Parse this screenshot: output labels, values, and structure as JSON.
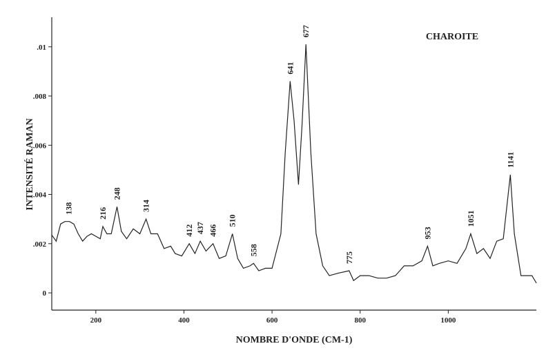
{
  "chart_data": {
    "type": "line",
    "title": "CHAROITE",
    "x_label": "NOMBRE D'ONDE (CM-1)",
    "y_label": "INTENSITÉ RAMAN",
    "color": "#222222",
    "xlim": [
      100,
      1200
    ],
    "xticks": [
      200,
      400,
      600,
      800,
      1000
    ],
    "ylim": [
      -0.0007,
      0.0112
    ],
    "yticks": [
      0,
      {
        "value": 0.002,
        "label": ".002"
      },
      {
        "value": 0.004,
        "label": ".004"
      },
      {
        "value": 0.006,
        "label": ".006"
      },
      {
        "value": 0.008,
        "label": ".008"
      },
      {
        "value": 0.01,
        "label": ".01"
      }
    ],
    "x": [
      100,
      110,
      120,
      130,
      140,
      150,
      160,
      170,
      180,
      190,
      200,
      210,
      216,
      225,
      235,
      248,
      258,
      270,
      285,
      300,
      314,
      325,
      340,
      355,
      370,
      380,
      395,
      412,
      425,
      437,
      450,
      466,
      480,
      495,
      510,
      522,
      535,
      550,
      558,
      570,
      585,
      600,
      610,
      620,
      630,
      641,
      650,
      660,
      668,
      677,
      688,
      700,
      715,
      730,
      750,
      775,
      785,
      800,
      820,
      840,
      860,
      880,
      900,
      920,
      940,
      953,
      965,
      980,
      1000,
      1020,
      1040,
      1051,
      1065,
      1080,
      1095,
      1110,
      1125,
      1141,
      1150,
      1165,
      1180,
      1190,
      1200
    ],
    "values": [
      0.00235,
      0.0021,
      0.0028,
      0.0029,
      0.0029,
      0.0028,
      0.0024,
      0.0021,
      0.0023,
      0.0024,
      0.0023,
      0.0022,
      0.0027,
      0.0024,
      0.0024,
      0.0035,
      0.0025,
      0.0022,
      0.0026,
      0.0024,
      0.003,
      0.0024,
      0.0024,
      0.0018,
      0.0019,
      0.0016,
      0.0015,
      0.002,
      0.0016,
      0.0021,
      0.0017,
      0.002,
      0.0014,
      0.0015,
      0.0024,
      0.0014,
      0.001,
      0.0011,
      0.0012,
      0.0009,
      0.001,
      0.001,
      0.0017,
      0.0024,
      0.0057,
      0.0086,
      0.007,
      0.0044,
      0.0068,
      0.0101,
      0.0057,
      0.0024,
      0.0011,
      0.0007,
      0.0008,
      0.0009,
      0.0005,
      0.0007,
      0.0007,
      0.0006,
      0.0006,
      0.0007,
      0.0011,
      0.0011,
      0.0013,
      0.0019,
      0.0011,
      0.0012,
      0.0013,
      0.0012,
      0.0018,
      0.0024,
      0.0016,
      0.0018,
      0.0014,
      0.0021,
      0.0022,
      0.0048,
      0.0024,
      0.0007,
      0.0007,
      0.0007,
      0.0004
    ],
    "peak_labels": [
      138,
      216,
      248,
      314,
      412,
      437,
      466,
      510,
      558,
      641,
      677,
      775,
      953,
      1051,
      1141
    ]
  }
}
